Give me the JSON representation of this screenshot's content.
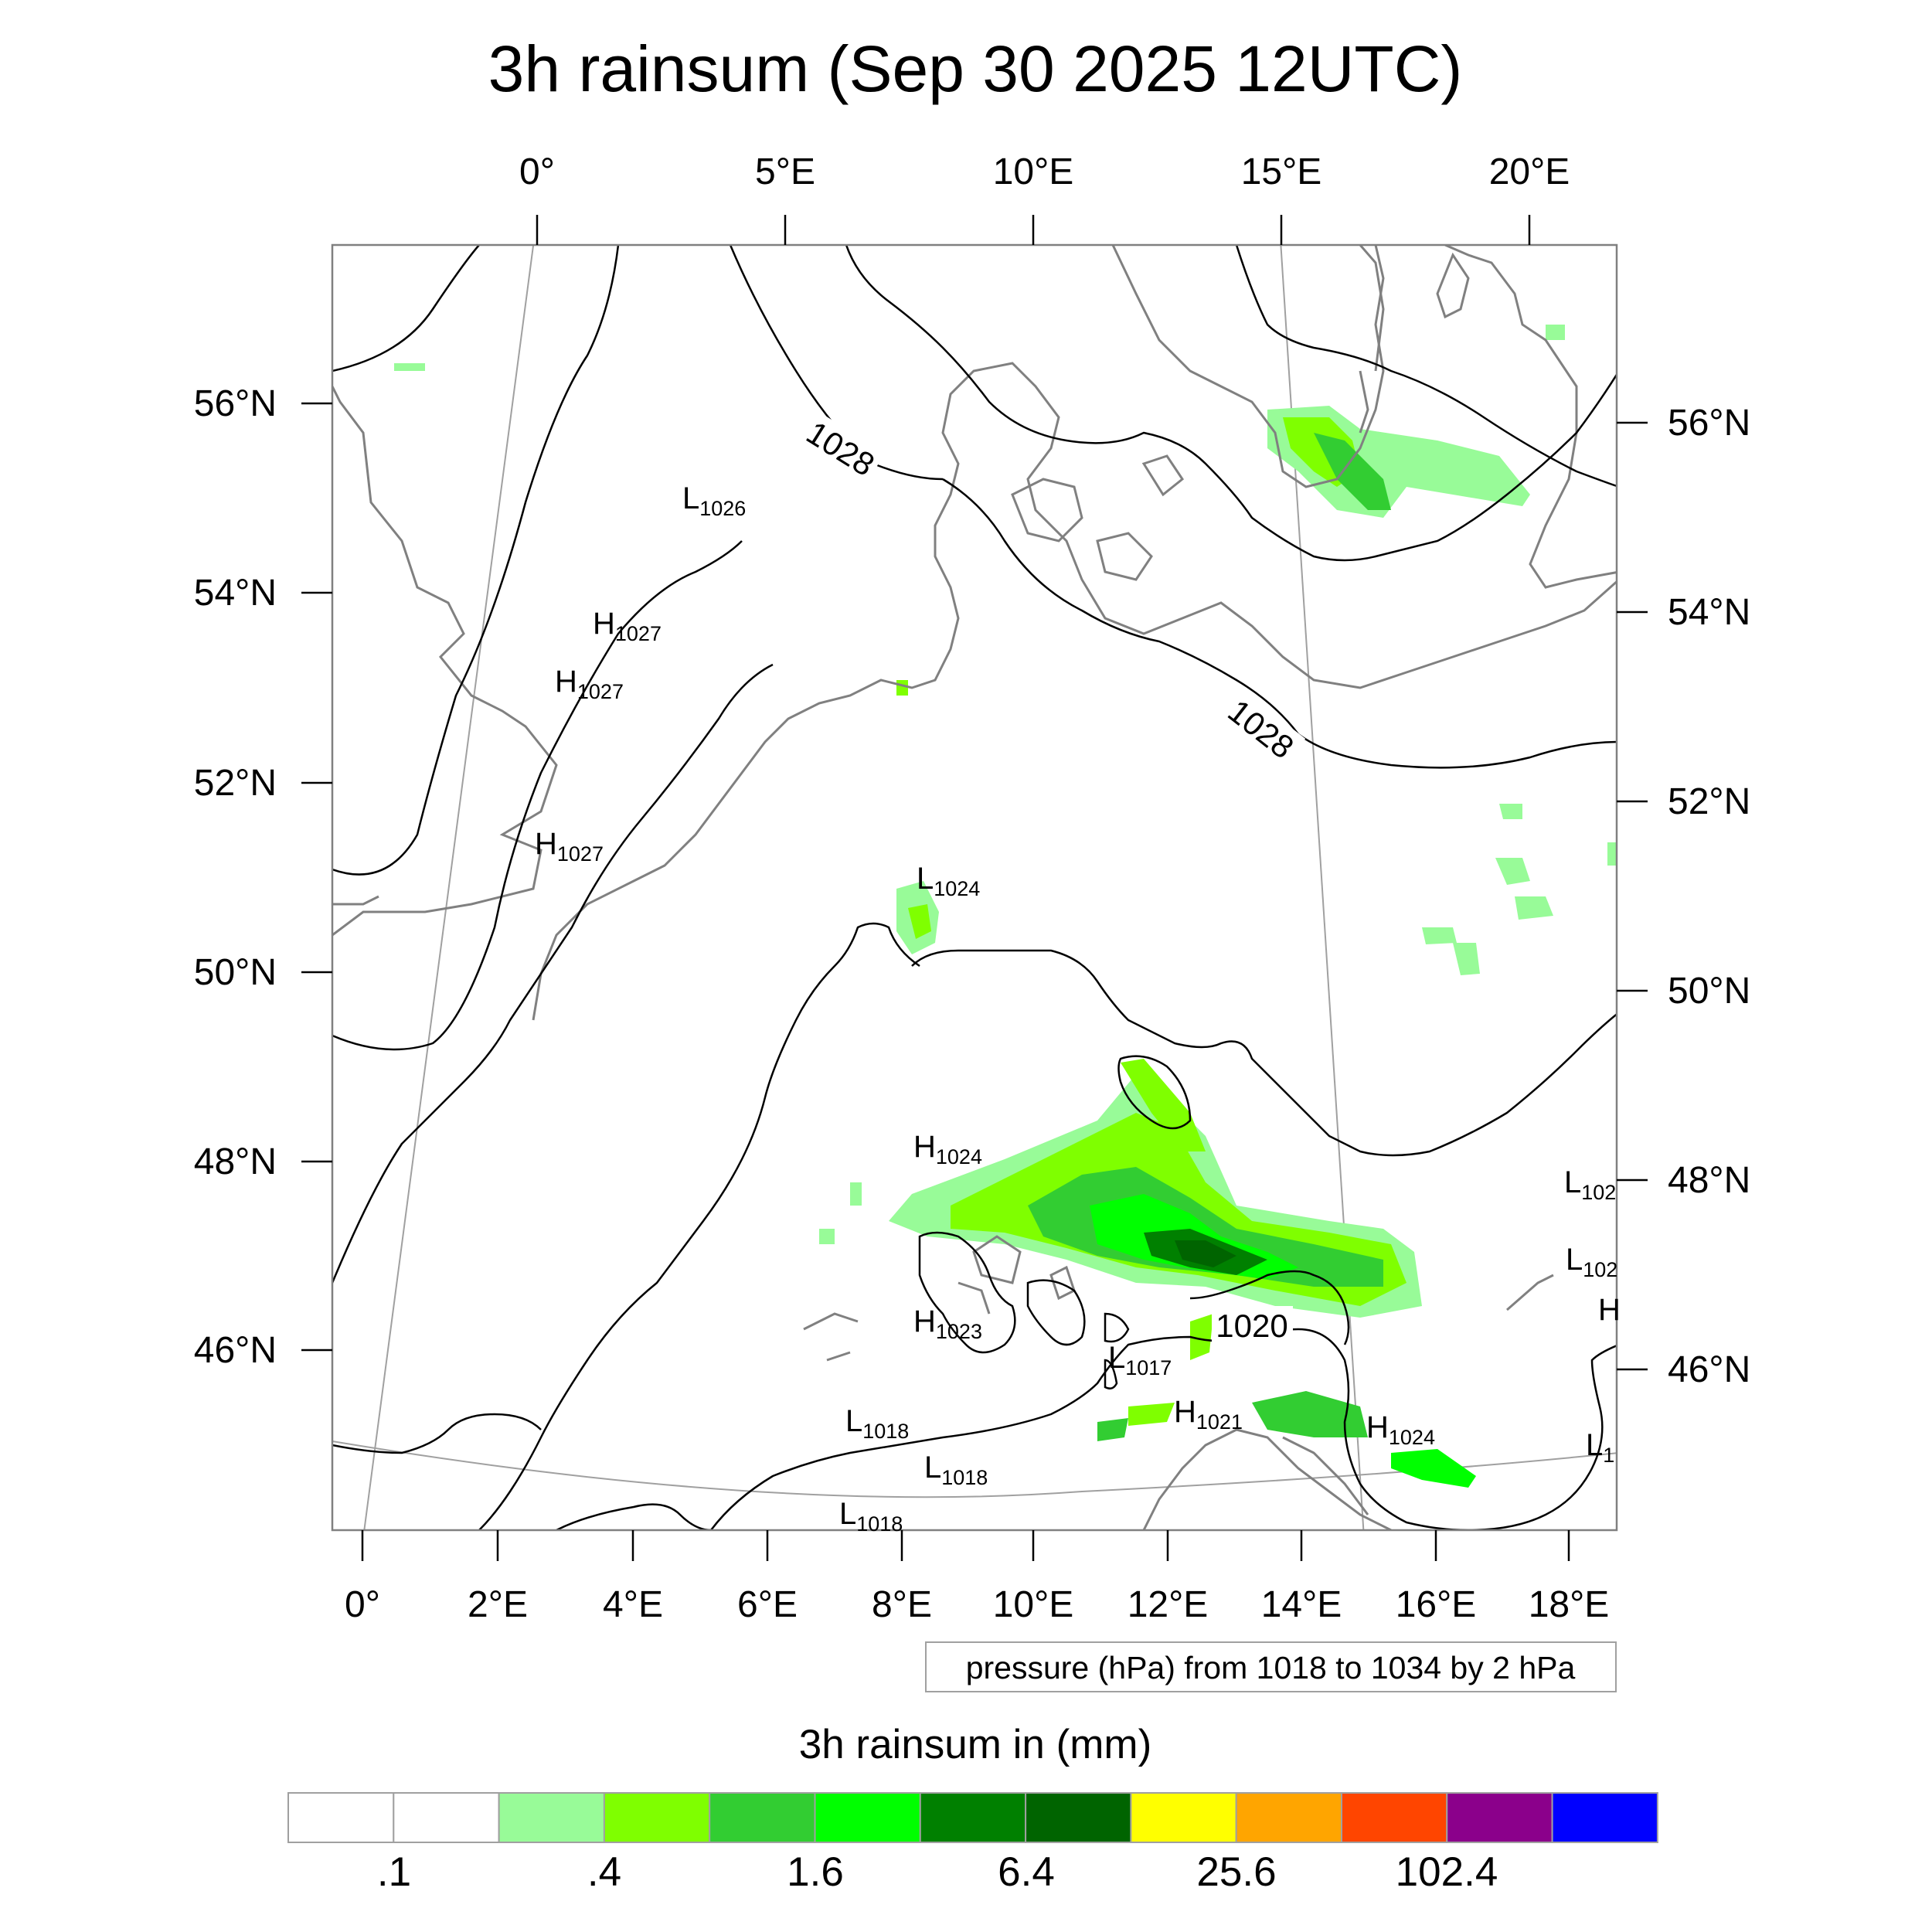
{
  "title": "3h rainsum (Sep 30 2025 12UTC)",
  "top_lon_labels": [
    "0°",
    "5°E",
    "10°E",
    "15°E",
    "20°E"
  ],
  "bottom_lon_labels": [
    "0°",
    "2°E",
    "4°E",
    "6°E",
    "8°E",
    "10°E",
    "12°E",
    "14°E",
    "16°E",
    "18°E"
  ],
  "left_lat_labels": [
    "56°N",
    "54°N",
    "52°N",
    "50°N",
    "48°N",
    "46°N"
  ],
  "right_lat_labels": [
    "56°N",
    "54°N",
    "52°N",
    "50°N",
    "48°N",
    "46°N"
  ],
  "contour_labels": [
    "1028",
    "1028",
    "1020"
  ],
  "pressure_centers": [
    {
      "type": "L",
      "value": "1026"
    },
    {
      "type": "H",
      "value": "1027"
    },
    {
      "type": "H",
      "value": "1027"
    },
    {
      "type": "H",
      "value": "1027"
    },
    {
      "type": "L",
      "value": "1024"
    },
    {
      "type": "H",
      "value": "1024"
    },
    {
      "type": "H",
      "value": "1023"
    },
    {
      "type": "L",
      "value": "1017"
    },
    {
      "type": "H",
      "value": "1021"
    },
    {
      "type": "H",
      "value": "1024"
    },
    {
      "type": "L",
      "value": "1018"
    },
    {
      "type": "L",
      "value": "1018"
    },
    {
      "type": "L",
      "value": "1018"
    },
    {
      "type": "L",
      "value": "102"
    },
    {
      "type": "L",
      "value": "102"
    },
    {
      "type": "H",
      "value": ""
    },
    {
      "type": "L",
      "value": "1"
    }
  ],
  "contour_note": "pressure (hPa) from 1018 to 1034 by 2 hPa",
  "colorbar": {
    "title": "3h rainsum in (mm)",
    "colors": [
      "#ffffff",
      "#ffffff",
      "#98fb98",
      "#7fff00",
      "#32cd32",
      "#00ff00",
      "#008000",
      "#006400",
      "#ffff00",
      "#ffa500",
      "#ff4500",
      "#8b008b",
      "#0000ff"
    ],
    "labels": [
      ".1",
      ".4",
      "1.6",
      "6.4",
      "25.6",
      "102.4"
    ]
  },
  "colors": {
    "coastline": "#808080",
    "isobar": "#000000",
    "graticule": "#a0a0a0"
  }
}
